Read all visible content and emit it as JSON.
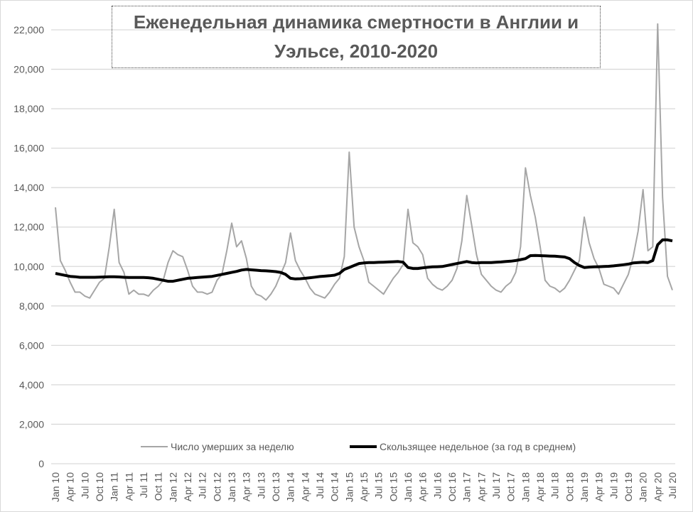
{
  "chart_data": {
    "type": "line",
    "title": "Еженедельная динамика смертности в Англии и Уэльсе, 2010-2020",
    "ylim": [
      0,
      22000
    ],
    "yticks": [
      "0",
      "2,000",
      "4,000",
      "6,000",
      "8,000",
      "10,000",
      "12,000",
      "14,000",
      "16,000",
      "18,000",
      "20,000",
      "22,000"
    ],
    "xtick_labels": [
      "Jan 10",
      "Apr 10",
      "Jul 10",
      "Oct 10",
      "Jan 11",
      "Apr 11",
      "Jul 11",
      "Oct 11",
      "Jan 12",
      "Apr 12",
      "Jul 12",
      "Oct 12",
      "Jan 13",
      "Apr 13",
      "Jul 13",
      "Oct 13",
      "Jan 14",
      "Apr 14",
      "Jul 14",
      "Oct 14",
      "Jan 15",
      "Apr 15",
      "Jul 15",
      "Oct 15",
      "Jan 16",
      "Apr 16",
      "Jul 16",
      "Oct 16",
      "Jan 17",
      "Apr 17",
      "Jul 17",
      "Oct 17",
      "Jan 18",
      "Apr 18",
      "Jul 18",
      "Oct 18",
      "Jan 19",
      "Apr 19",
      "Jul 19",
      "Oct 19",
      "Jan 20",
      "Apr 20",
      "Jul 20"
    ],
    "x_start": "2010-01",
    "x_step": "1 month",
    "grid": true,
    "legend_position": "bottom",
    "series": [
      {
        "name": "Число умерших за неделю",
        "color": "#a6a6a6",
        "values": [
          13000,
          10300,
          9800,
          9200,
          8700,
          8700,
          8500,
          8400,
          8800,
          9200,
          9400,
          11000,
          12900,
          10200,
          9700,
          8600,
          8800,
          8600,
          8600,
          8500,
          8800,
          9000,
          9300,
          10200,
          10800,
          10600,
          10500,
          9800,
          9000,
          8700,
          8700,
          8600,
          8700,
          9300,
          9600,
          10800,
          12200,
          11000,
          11300,
          10400,
          9000,
          8600,
          8500,
          8300,
          8600,
          9000,
          9600,
          10200,
          11700,
          10300,
          9800,
          9400,
          8900,
          8600,
          8500,
          8400,
          8700,
          9100,
          9400,
          10500,
          15800,
          12000,
          11000,
          10300,
          9200,
          9000,
          8800,
          8600,
          9000,
          9400,
          9700,
          10100,
          12900,
          11200,
          11000,
          10600,
          9400,
          9100,
          8900,
          8800,
          9000,
          9300,
          9900,
          11300,
          13600,
          12100,
          10600,
          9600,
          9300,
          9000,
          8800,
          8700,
          9000,
          9200,
          9700,
          11000,
          15000,
          13600,
          12500,
          11000,
          9300,
          9000,
          8900,
          8700,
          8900,
          9300,
          9800,
          10300,
          12500,
          11200,
          10400,
          9900,
          9100,
          9000,
          8900,
          8600,
          9100,
          9600,
          10500,
          11800,
          13900,
          10800,
          11000,
          22300,
          13500,
          9500,
          8800
        ]
      },
      {
        "name": "Скользящее недельное (за год в среднем)",
        "color": "#000000",
        "values": [
          9650,
          9600,
          9550,
          9500,
          9480,
          9450,
          9450,
          9450,
          9450,
          9460,
          9470,
          9480,
          9480,
          9470,
          9450,
          9440,
          9440,
          9440,
          9440,
          9430,
          9400,
          9350,
          9300,
          9250,
          9250,
          9300,
          9350,
          9400,
          9420,
          9440,
          9460,
          9480,
          9500,
          9550,
          9600,
          9650,
          9700,
          9750,
          9820,
          9850,
          9830,
          9810,
          9790,
          9780,
          9760,
          9740,
          9700,
          9600,
          9400,
          9370,
          9380,
          9400,
          9430,
          9460,
          9490,
          9510,
          9530,
          9560,
          9650,
          9850,
          9950,
          10050,
          10150,
          10180,
          10200,
          10200,
          10210,
          10220,
          10230,
          10240,
          10250,
          10220,
          9950,
          9900,
          9900,
          9930,
          9960,
          9980,
          9990,
          10000,
          10050,
          10100,
          10150,
          10200,
          10250,
          10200,
          10180,
          10200,
          10200,
          10200,
          10220,
          10230,
          10250,
          10270,
          10300,
          10350,
          10400,
          10550,
          10560,
          10550,
          10540,
          10530,
          10520,
          10500,
          10480,
          10400,
          10200,
          10050,
          9950,
          9970,
          9980,
          9990,
          10000,
          10010,
          10030,
          10060,
          10090,
          10120,
          10180,
          10200,
          10220,
          10200,
          10300,
          11100,
          11350,
          11350,
          11300
        ]
      }
    ]
  }
}
